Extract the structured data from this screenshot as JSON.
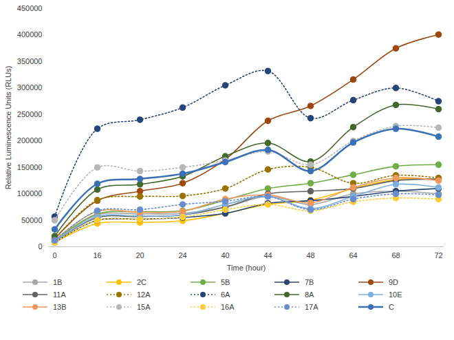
{
  "chart_data": {
    "type": "line",
    "x_label": "Time (hour)",
    "y_label": "Relative Luminescence Units (RLUs)",
    "categories": [
      "0",
      "16",
      "20",
      "24",
      "40",
      "44",
      "48",
      "64",
      "68",
      "72"
    ],
    "ylim": [
      0,
      450000
    ],
    "yticks": [
      0,
      50000,
      100000,
      150000,
      200000,
      250000,
      300000,
      350000,
      400000,
      450000
    ],
    "grid": false,
    "legend": "bottom",
    "series": [
      {
        "name": "1B",
        "color": "#a5a5a5",
        "marker": "circle",
        "line_style": "solid",
        "values": [
          12000,
          60000,
          62000,
          63000,
          75000,
          95000,
          80000,
          100000,
          105000,
          100000
        ]
      },
      {
        "name": "2C",
        "color": "#ffc000",
        "marker": "circle",
        "line_style": "solid",
        "values": [
          8000,
          44000,
          46000,
          49000,
          63000,
          80000,
          88000,
          110000,
          127000,
          128000
        ]
      },
      {
        "name": "5B",
        "color": "#70ad47",
        "marker": "circle",
        "line_style": "solid",
        "values": [
          12000,
          62000,
          66000,
          68000,
          88000,
          110000,
          120000,
          136000,
          152000,
          155000
        ]
      },
      {
        "name": "7B",
        "color": "#264478",
        "marker": "circle",
        "line_style": "solid",
        "values": [
          8000,
          50000,
          52000,
          55000,
          63000,
          82000,
          87000,
          95000,
          105000,
          110000
        ]
      },
      {
        "name": "9D",
        "color": "#9e480e",
        "marker": "circle",
        "line_style": "solid",
        "values": [
          15000,
          87000,
          105000,
          120000,
          165000,
          238000,
          266000,
          316000,
          375000,
          401000
        ]
      },
      {
        "name": "11A",
        "color": "#636363",
        "marker": "circle",
        "line_style": "solid",
        "values": [
          10000,
          55000,
          57000,
          60000,
          75000,
          100000,
          105000,
          110000,
          125000,
          128000
        ]
      },
      {
        "name": "12A",
        "color": "#997300",
        "marker": "circle",
        "line_style": "dotted",
        "values": [
          15000,
          88000,
          95000,
          96000,
          110000,
          146000,
          150000,
          120000,
          135000,
          130000
        ]
      },
      {
        "name": "6A",
        "color": "#264478",
        "marker": "circle",
        "line_style": "dotted",
        "values": [
          57000,
          223000,
          240000,
          263000,
          305000,
          332000,
          243000,
          277000,
          300000,
          275000
        ]
      },
      {
        "name": "8A",
        "color": "#43682b",
        "marker": "circle",
        "line_style": "solid",
        "values": [
          20000,
          108000,
          118000,
          133000,
          171000,
          196000,
          161000,
          226000,
          268000,
          260000
        ]
      },
      {
        "name": "10E",
        "color": "#7cafdd",
        "marker": "circle",
        "line_style": "solid",
        "values": [
          10000,
          57000,
          58000,
          60000,
          80000,
          95000,
          72000,
          95000,
          118000,
          112000
        ]
      },
      {
        "name": "13B",
        "color": "#f1975a",
        "marker": "circle",
        "line_style": "solid",
        "values": [
          12000,
          67000,
          65000,
          67000,
          90000,
          98000,
          83000,
          112000,
          130000,
          125000
        ]
      },
      {
        "name": "15A",
        "color": "#b7b7b7",
        "marker": "circle",
        "line_style": "dotted",
        "values": [
          50000,
          150000,
          143000,
          150000,
          163000,
          180000,
          155000,
          200000,
          228000,
          225000
        ]
      },
      {
        "name": "16A",
        "color": "#ffcd33",
        "marker": "circle",
        "line_style": "dotted",
        "values": [
          8000,
          50000,
          52000,
          56000,
          70000,
          80000,
          68000,
          85000,
          92000,
          90000
        ]
      },
      {
        "name": "17A",
        "color": "#698ed0",
        "marker": "circle",
        "line_style": "dotted",
        "values": [
          12000,
          68000,
          70000,
          80000,
          86000,
          95000,
          70000,
          90000,
          100000,
          98000
        ]
      },
      {
        "name": "C",
        "color": "#3a70b8",
        "marker": "circle",
        "line_style": "solid",
        "values": [
          33000,
          119000,
          128000,
          138000,
          160000,
          183000,
          143000,
          197000,
          223000,
          208000
        ]
      }
    ]
  }
}
